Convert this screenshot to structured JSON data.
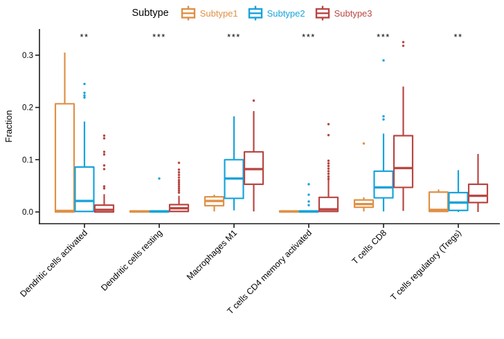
{
  "chart_data": {
    "type": "boxplot",
    "title": "",
    "legend_title": "Subtype",
    "legend_position": "top",
    "ylabel": "Fraction",
    "ylim": [
      0,
      0.35
    ],
    "y_ticks": [
      0,
      0.1,
      0.2,
      0.3
    ],
    "y_tick_labels": [
      "0.0",
      "0.1",
      "0.2",
      "0.3"
    ],
    "grid": false,
    "categories": [
      "Dendritic cells activated",
      "Dendritic cells resting",
      "Macrophages M1",
      "T cells CD4 memory activated",
      "T cells CD8",
      "T cells regulatory (Tregs)"
    ],
    "significance": [
      "**",
      "***",
      "***",
      "***",
      "***",
      "**"
    ],
    "series": [
      {
        "name": "Subtype1",
        "color": "#DF9045",
        "boxes": [
          {
            "low": 0,
            "q1": 0,
            "median": 0.002,
            "q3": 0.207,
            "high": 0.305,
            "outliers": []
          },
          {
            "low": 0,
            "q1": 0,
            "median": 0.001,
            "q3": 0.002,
            "high": 0.003,
            "outliers": []
          },
          {
            "low": 0.001,
            "q1": 0.012,
            "median": 0.021,
            "q3": 0.029,
            "high": 0.033,
            "outliers": []
          },
          {
            "low": 0,
            "q1": 0,
            "median": 0.001,
            "q3": 0.002,
            "high": 0.003,
            "outliers": []
          },
          {
            "low": 0.001,
            "q1": 0.009,
            "median": 0.015,
            "q3": 0.023,
            "high": 0.028,
            "outliers": [
              0.131
            ]
          },
          {
            "low": 0,
            "q1": 0.001,
            "median": 0.004,
            "q3": 0.038,
            "high": 0.043,
            "outliers": []
          }
        ]
      },
      {
        "name": "Subtype2",
        "color": "#17A3DB",
        "boxes": [
          {
            "low": 0,
            "q1": 0.001,
            "median": 0.021,
            "q3": 0.086,
            "high": 0.173,
            "outliers": [
              0.245,
              0.228,
              0.223,
              0.219
            ]
          },
          {
            "low": 0,
            "q1": 0,
            "median": 0.001,
            "q3": 0.002,
            "high": 0.003,
            "outliers": [
              0.064
            ]
          },
          {
            "low": 0.003,
            "q1": 0.026,
            "median": 0.064,
            "q3": 0.1,
            "high": 0.183,
            "outliers": []
          },
          {
            "low": 0,
            "q1": 0,
            "median": 0.001,
            "q3": 0.002,
            "high": 0.003,
            "outliers": [
              0.053,
              0.033,
              0.02,
              0.013
            ]
          },
          {
            "low": 0.001,
            "q1": 0.027,
            "median": 0.047,
            "q3": 0.078,
            "high": 0.15,
            "outliers": [
              0.29,
              0.183,
              0.177
            ]
          },
          {
            "low": 0,
            "q1": 0.003,
            "median": 0.018,
            "q3": 0.037,
            "high": 0.08,
            "outliers": []
          }
        ]
      },
      {
        "name": "Subtype3",
        "color": "#B84643",
        "boxes": [
          {
            "low": 0,
            "q1": 0,
            "median": 0.004,
            "q3": 0.013,
            "high": 0.034,
            "outliers": [
              0.146,
              0.141,
              0.115,
              0.11,
              0.089,
              0.082,
              0.049,
              0.045
            ]
          },
          {
            "low": 0,
            "q1": 0.001,
            "median": 0.007,
            "q3": 0.014,
            "high": 0.031,
            "outliers": [
              0.094,
              0.081,
              0.076,
              0.071,
              0.066,
              0.061,
              0.057,
              0.053,
              0.049,
              0.045,
              0.041,
              0.037
            ]
          },
          {
            "low": 0.001,
            "q1": 0.053,
            "median": 0.082,
            "q3": 0.115,
            "high": 0.193,
            "outliers": [
              0.213
            ]
          },
          {
            "low": 0,
            "q1": 0.001,
            "median": 0.005,
            "q3": 0.028,
            "high": 0.066,
            "outliers": [
              0.168,
              0.147,
              0.098,
              0.093,
              0.088,
              0.083,
              0.078,
              0.073,
              0.068,
              0.063
            ]
          },
          {
            "low": 0.002,
            "q1": 0.047,
            "median": 0.084,
            "q3": 0.146,
            "high": 0.24,
            "outliers": [
              0.325,
              0.318
            ]
          },
          {
            "low": 0,
            "q1": 0.018,
            "median": 0.031,
            "q3": 0.053,
            "high": 0.111,
            "outliers": []
          }
        ]
      }
    ]
  }
}
